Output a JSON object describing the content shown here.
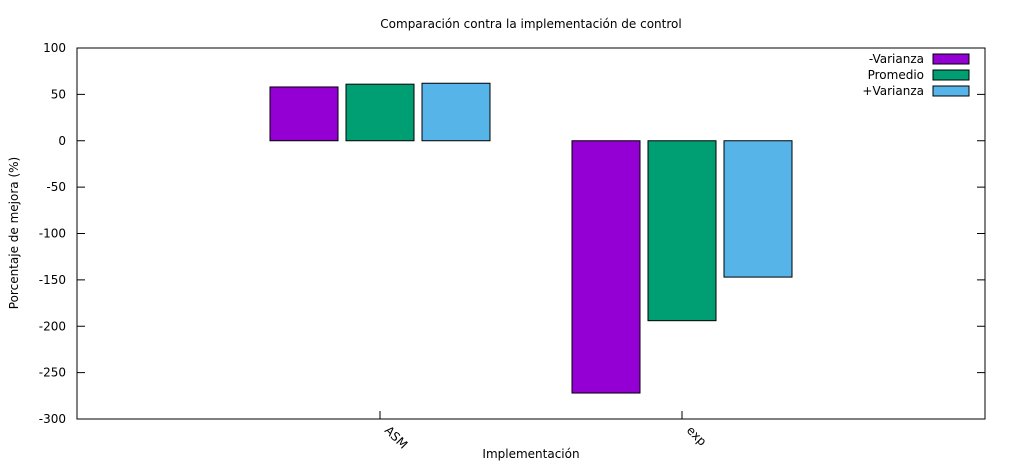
{
  "chart_data": {
    "type": "bar",
    "title": "Comparación contra la implementación de control",
    "xlabel": "Implementación",
    "ylabel": "Porcentaje de mejora (%)",
    "ylim": [
      -300,
      100
    ],
    "yticks": [
      100,
      50,
      0,
      -50,
      -100,
      -150,
      -200,
      -250,
      -300
    ],
    "categories": [
      "ASM",
      "exp"
    ],
    "series": [
      {
        "name": "-Varianza",
        "color": "#9400d3",
        "values": [
          58,
          -272
        ]
      },
      {
        "name": "Promedio",
        "color": "#009e73",
        "values": [
          61,
          -194
        ]
      },
      {
        "name": "+Varianza",
        "color": "#56b4e9",
        "values": [
          62,
          -147
        ]
      }
    ],
    "legend_position": "top-right",
    "grid": false
  }
}
